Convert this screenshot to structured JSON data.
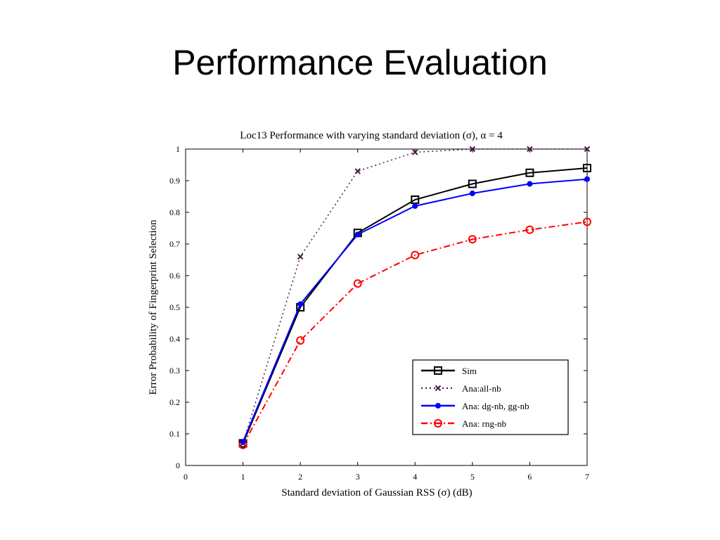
{
  "slide": {
    "title": "Performance Evaluation"
  },
  "chart_data": {
    "type": "line",
    "title": "Loc13 Performance with varying standard deviation (σ), α = 4",
    "xlabel": "Standard deviation of Gaussian RSS (σ) (dB)",
    "ylabel": "Error Probability of Fingerprint Selection",
    "xlim": [
      0,
      7
    ],
    "ylim": [
      0,
      1
    ],
    "xticks": [
      "0",
      "1",
      "2",
      "3",
      "4",
      "5",
      "6",
      "7"
    ],
    "yticks": [
      "0",
      "0.1",
      "0.2",
      "0.3",
      "0.4",
      "0.5",
      "0.6",
      "0.7",
      "0.8",
      "0.9",
      "1"
    ],
    "grid": false,
    "legend_position": "lower-right",
    "series": [
      {
        "name": "Sim",
        "color": "#000000",
        "line_style": "solid",
        "marker": "square",
        "x": [
          1,
          2,
          3,
          4,
          5,
          6,
          7
        ],
        "y": [
          0.07,
          0.5,
          0.735,
          0.84,
          0.89,
          0.925,
          0.94
        ]
      },
      {
        "name": "Ana:all-nb",
        "color": "#4a1a4a",
        "line_style": "dotted",
        "marker": "x",
        "x": [
          1,
          2,
          3,
          4,
          5,
          6,
          7
        ],
        "y": [
          0.07,
          0.66,
          0.93,
          0.99,
          1.0,
          1.0,
          1.0
        ]
      },
      {
        "name": "Ana: dg-nb, gg-nb",
        "color": "#0000ff",
        "line_style": "solid",
        "marker": "dot",
        "x": [
          1,
          2,
          3,
          4,
          5,
          6,
          7
        ],
        "y": [
          0.075,
          0.51,
          0.73,
          0.82,
          0.86,
          0.89,
          0.905
        ]
      },
      {
        "name": "Ana: rng-nb",
        "color": "#ff0000",
        "line_style": "dashdot",
        "marker": "circle",
        "x": [
          1,
          2,
          3,
          4,
          5,
          6,
          7
        ],
        "y": [
          0.065,
          0.395,
          0.575,
          0.665,
          0.715,
          0.745,
          0.77
        ]
      }
    ]
  }
}
